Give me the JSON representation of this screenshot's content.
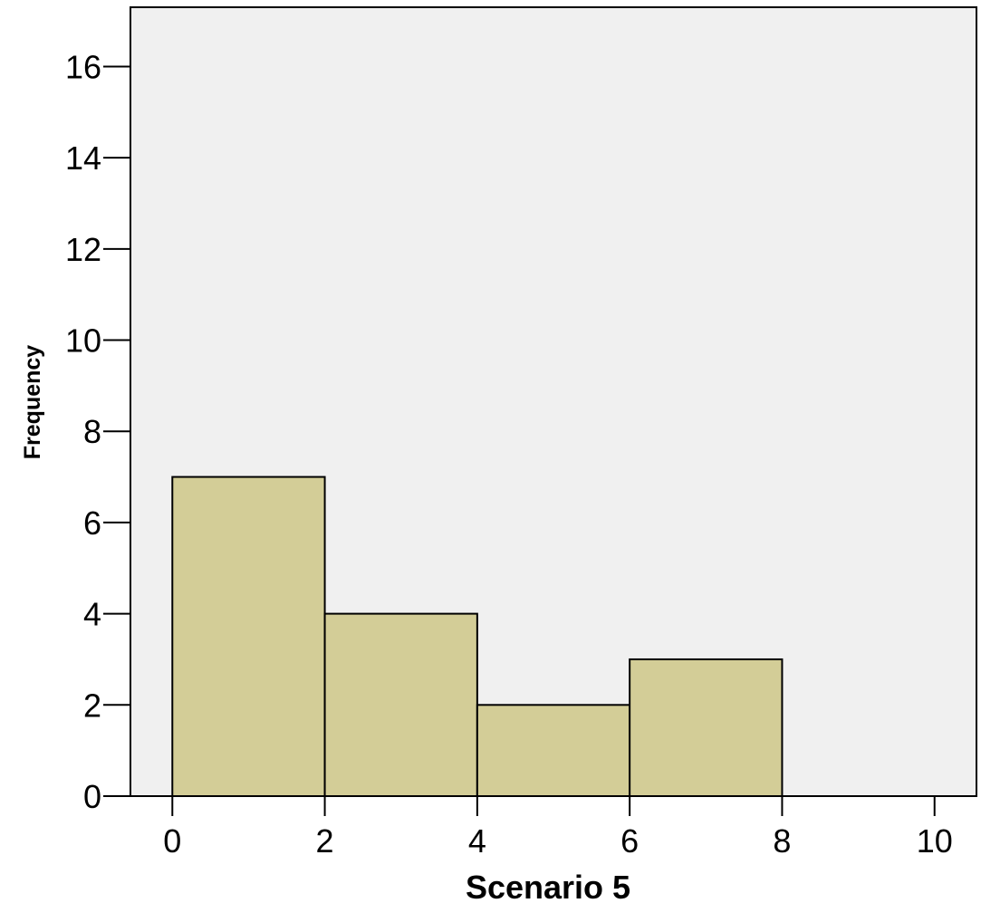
{
  "chart_data": {
    "type": "bar",
    "title": "",
    "xlabel": "Scenario 5",
    "ylabel": "Frequency",
    "bins": [
      {
        "x0": 0,
        "x1": 2,
        "value": 7
      },
      {
        "x0": 2,
        "x1": 4,
        "value": 4
      },
      {
        "x0": 4,
        "x1": 6,
        "value": 2
      },
      {
        "x0": 6,
        "x1": 8,
        "value": 3
      }
    ],
    "categories": [
      "0-2",
      "2-4",
      "4-6",
      "6-8"
    ],
    "values": [
      7,
      4,
      2,
      3
    ],
    "xlim": [
      -0.55,
      10.55
    ],
    "ylim": [
      0,
      17.3
    ],
    "x_ticks": [
      0,
      2,
      4,
      6,
      8,
      10
    ],
    "y_ticks": [
      0,
      2,
      4,
      6,
      8,
      10,
      12,
      14,
      16
    ],
    "grid": false,
    "legend": "none",
    "colors": {
      "bar_fill": "#d3cd97",
      "bar_stroke": "#000000",
      "plot_background": "#f0f0f0",
      "page_background": "#ffffff"
    }
  }
}
